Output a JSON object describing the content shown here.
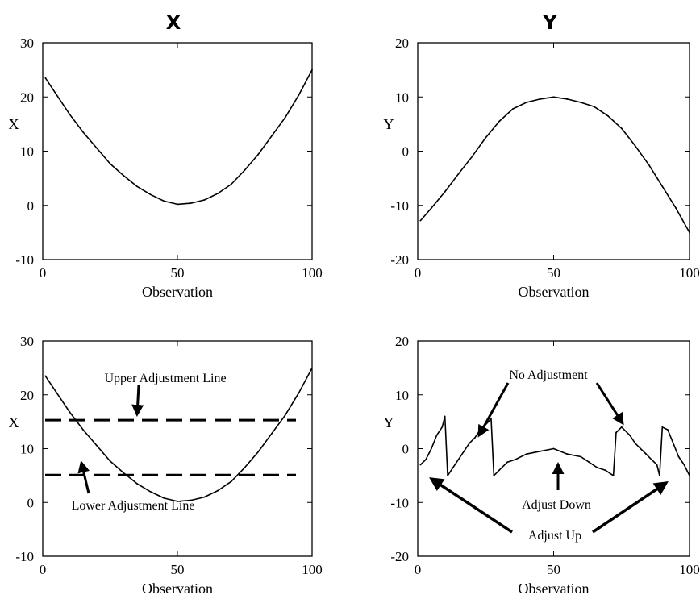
{
  "column_titles": [
    "X",
    "Y"
  ],
  "chart_data": [
    {
      "type": "line",
      "title": "X",
      "xlabel": "Observation",
      "ylabel": "X",
      "xlim": [
        0,
        100
      ],
      "ylim": [
        -10,
        30
      ],
      "xticks": [
        0,
        50,
        100
      ],
      "yticks": [
        -10,
        0,
        10,
        20,
        30
      ],
      "x": [
        1,
        5,
        10,
        15,
        20,
        25,
        30,
        35,
        40,
        45,
        50,
        55,
        60,
        65,
        70,
        75,
        80,
        85,
        90,
        95,
        100
      ],
      "series": [
        {
          "values": [
            23.5,
            20.5,
            16.8,
            13.5,
            10.6,
            7.7,
            5.5,
            3.5,
            2.0,
            0.8,
            0.2,
            0.4,
            1.0,
            2.2,
            3.9,
            6.5,
            9.4,
            12.8,
            16.2,
            20.3,
            25.0
          ]
        }
      ],
      "annotations": []
    },
    {
      "type": "line",
      "title": "Y",
      "xlabel": "Observation",
      "ylabel": "Y",
      "xlim": [
        0,
        100
      ],
      "ylim": [
        -20,
        20
      ],
      "xticks": [
        0,
        50,
        100
      ],
      "yticks": [
        -20,
        -10,
        0,
        10,
        20
      ],
      "x": [
        1,
        5,
        10,
        15,
        20,
        25,
        30,
        35,
        40,
        45,
        50,
        55,
        60,
        65,
        70,
        75,
        80,
        85,
        90,
        95,
        100
      ],
      "series": [
        {
          "values": [
            -12.8,
            -10.5,
            -7.5,
            -4.2,
            -1.0,
            2.5,
            5.5,
            7.8,
            9.0,
            9.6,
            10.0,
            9.6,
            9.0,
            8.2,
            6.5,
            4.2,
            1.0,
            -2.5,
            -6.5,
            -10.5,
            -15.0
          ]
        }
      ],
      "annotations": []
    },
    {
      "type": "line",
      "title": "",
      "xlabel": "Observation",
      "ylabel": "X",
      "xlim": [
        0,
        100
      ],
      "ylim": [
        -10,
        30
      ],
      "xticks": [
        0,
        50,
        100
      ],
      "yticks": [
        -10,
        0,
        10,
        20,
        30
      ],
      "x": [
        1,
        5,
        10,
        15,
        20,
        25,
        30,
        35,
        40,
        45,
        50,
        55,
        60,
        65,
        70,
        75,
        80,
        85,
        90,
        95,
        100
      ],
      "series": [
        {
          "values": [
            23.5,
            20.5,
            16.8,
            13.5,
            10.6,
            7.7,
            5.5,
            3.5,
            2.0,
            0.8,
            0.2,
            0.4,
            1.0,
            2.2,
            3.9,
            6.5,
            9.4,
            12.8,
            16.2,
            20.3,
            25.0
          ]
        }
      ],
      "reference_lines": [
        {
          "y": 15.3,
          "label": "Upper Adjustment Line"
        },
        {
          "y": 5.1,
          "label": "Lower Adjustment Line"
        }
      ],
      "annotations": [
        "Upper Adjustment Line",
        "Lower Adjustment Line"
      ]
    },
    {
      "type": "line",
      "title": "",
      "xlabel": "Observation",
      "ylabel": "Y",
      "xlim": [
        0,
        100
      ],
      "ylim": [
        -20,
        20
      ],
      "xticks": [
        0,
        50,
        100
      ],
      "yticks": [
        -20,
        -10,
        0,
        10,
        20
      ],
      "x": [
        1,
        3,
        5,
        7,
        9,
        10,
        11,
        13,
        15,
        17,
        19,
        21,
        23,
        25,
        27,
        28,
        30,
        33,
        36,
        40,
        45,
        50,
        55,
        60,
        63,
        66,
        69,
        72,
        73,
        75,
        78,
        80,
        82,
        84,
        86,
        88,
        89,
        90,
        92,
        94,
        96,
        98,
        100
      ],
      "series": [
        {
          "values": [
            -3.0,
            -2.0,
            0.0,
            2.5,
            4.0,
            6.0,
            -5.0,
            -3.5,
            -2.0,
            -0.5,
            1.0,
            2.0,
            3.5,
            4.5,
            5.5,
            -5.0,
            -4.0,
            -2.5,
            -2.0,
            -1.0,
            -0.5,
            0.0,
            -1.0,
            -1.5,
            -2.5,
            -3.5,
            -4.0,
            -5.0,
            3.0,
            4.0,
            2.5,
            1.0,
            0.0,
            -1.0,
            -2.0,
            -3.0,
            -5.0,
            4.0,
            3.5,
            1.0,
            -1.5,
            -3.0,
            -5.0
          ]
        }
      ],
      "annotations": [
        "No Adjustment",
        "Adjust Down",
        "Adjust Up"
      ]
    }
  ]
}
